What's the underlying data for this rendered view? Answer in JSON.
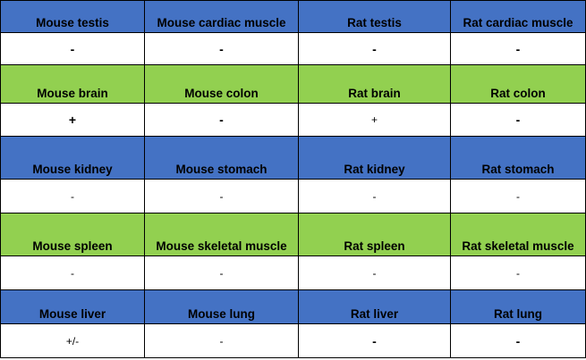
{
  "colors": {
    "blue_band": "#4472c4",
    "green_band": "#92d050",
    "value_row": "#ffffff"
  },
  "bands": [
    {
      "color": "blue",
      "headers": [
        "Mouse testis",
        "Mouse cardiac muscle",
        "Rat testis",
        "Rat cardiac muscle"
      ],
      "values": [
        "-",
        "-",
        "-",
        "-"
      ],
      "value_weight": [
        "bold",
        "bold",
        "bold",
        "bold"
      ]
    },
    {
      "color": "green",
      "headers": [
        "Mouse brain",
        "Mouse colon",
        "Rat brain",
        "Rat colon"
      ],
      "values": [
        "+",
        "-",
        "+",
        "-"
      ],
      "value_weight": [
        "bold",
        "bold",
        "normal",
        "bold"
      ]
    },
    {
      "color": "blue",
      "headers": [
        "Mouse kidney",
        "Mouse stomach",
        "Rat kidney",
        "Rat stomach"
      ],
      "values": [
        "-",
        "-",
        "-",
        "-"
      ],
      "value_weight": [
        "normal",
        "normal",
        "normal",
        "normal"
      ]
    },
    {
      "color": "green",
      "headers": [
        "Mouse spleen",
        "Mouse skeletal muscle",
        "Rat spleen",
        "Rat skeletal muscle"
      ],
      "values": [
        "-",
        "-",
        "-",
        "-"
      ],
      "value_weight": [
        "normal",
        "normal",
        "normal",
        "normal"
      ]
    },
    {
      "color": "blue",
      "headers": [
        "Mouse liver",
        "Mouse lung",
        "Rat liver",
        "Rat lung"
      ],
      "values": [
        "+/-",
        "-",
        "-",
        "-"
      ],
      "value_weight": [
        "normal",
        "normal",
        "bold",
        "bold"
      ]
    }
  ]
}
